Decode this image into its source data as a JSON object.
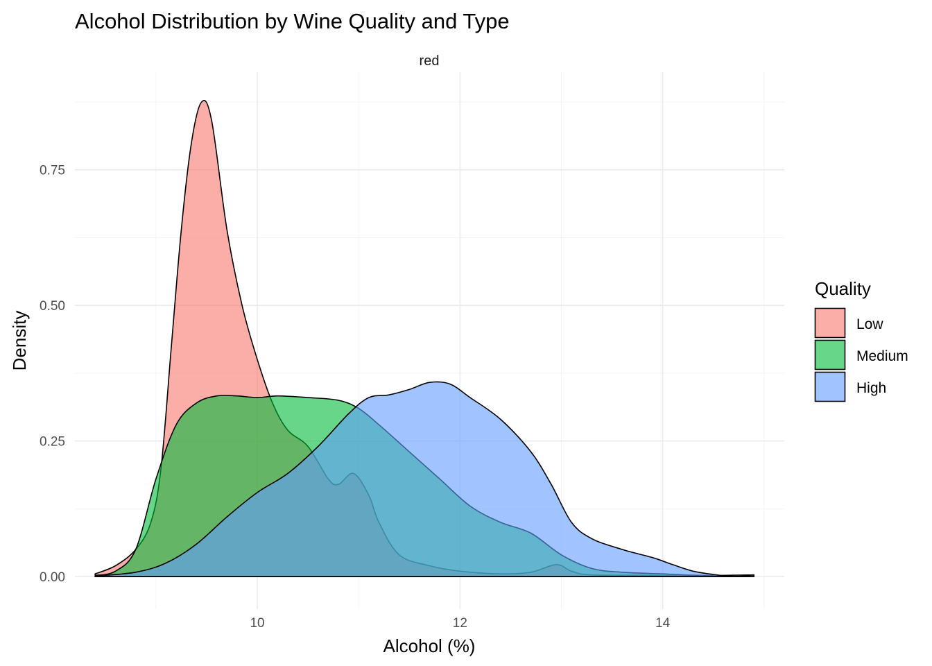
{
  "chart_data": {
    "type": "area",
    "title": "Alcohol Distribution by Wine Quality and Type",
    "facet": "red",
    "xlabel": "Alcohol (%)",
    "ylabel": "Density",
    "xlim": [
      8.2,
      15.2
    ],
    "ylim": [
      -0.06,
      0.93
    ],
    "x_ticks": [
      10,
      12,
      14
    ],
    "x_tick_labels": [
      "10",
      "12",
      "14"
    ],
    "y_ticks": [
      0,
      0.25,
      0.5,
      0.75
    ],
    "y_tick_labels": [
      "0.00",
      "0.25",
      "0.50",
      "0.75"
    ],
    "grid": true,
    "legend": {
      "title": "Quality",
      "position": "right"
    },
    "series": [
      {
        "name": "Low",
        "color": "#F8766D",
        "points": [
          [
            8.4,
            0.005
          ],
          [
            8.6,
            0.02
          ],
          [
            8.8,
            0.05
          ],
          [
            8.95,
            0.1
          ],
          [
            9.05,
            0.2
          ],
          [
            9.15,
            0.42
          ],
          [
            9.25,
            0.64
          ],
          [
            9.35,
            0.8
          ],
          [
            9.45,
            0.875
          ],
          [
            9.55,
            0.84
          ],
          [
            9.7,
            0.64
          ],
          [
            9.85,
            0.5
          ],
          [
            10.0,
            0.4
          ],
          [
            10.15,
            0.32
          ],
          [
            10.3,
            0.27
          ],
          [
            10.5,
            0.24
          ],
          [
            10.7,
            0.18
          ],
          [
            10.8,
            0.17
          ],
          [
            10.95,
            0.19
          ],
          [
            11.1,
            0.15
          ],
          [
            11.2,
            0.1
          ],
          [
            11.4,
            0.04
          ],
          [
            11.7,
            0.02
          ],
          [
            12.0,
            0.01
          ],
          [
            12.4,
            0.005
          ],
          [
            12.7,
            0.008
          ],
          [
            12.95,
            0.022
          ],
          [
            13.1,
            0.01
          ],
          [
            13.3,
            0.003
          ],
          [
            14.0,
            0.002
          ],
          [
            14.8,
            0.0
          ]
        ]
      },
      {
        "name": "Medium",
        "color": "#00BA38",
        "points": [
          [
            8.4,
            0.002
          ],
          [
            8.6,
            0.01
          ],
          [
            8.8,
            0.05
          ],
          [
            9.0,
            0.18
          ],
          [
            9.2,
            0.28
          ],
          [
            9.4,
            0.32
          ],
          [
            9.6,
            0.333
          ],
          [
            9.8,
            0.333
          ],
          [
            10.0,
            0.33
          ],
          [
            10.2,
            0.333
          ],
          [
            10.5,
            0.33
          ],
          [
            10.8,
            0.325
          ],
          [
            11.0,
            0.31
          ],
          [
            11.2,
            0.28
          ],
          [
            11.5,
            0.23
          ],
          [
            11.8,
            0.18
          ],
          [
            12.1,
            0.13
          ],
          [
            12.4,
            0.1
          ],
          [
            12.7,
            0.08
          ],
          [
            13.0,
            0.04
          ],
          [
            13.3,
            0.015
          ],
          [
            13.6,
            0.008
          ],
          [
            14.0,
            0.005
          ],
          [
            14.4,
            0.002
          ],
          [
            14.9,
            0.003
          ]
        ]
      },
      {
        "name": "High",
        "color": "#619CFF",
        "points": [
          [
            8.4,
            0.001
          ],
          [
            8.8,
            0.008
          ],
          [
            9.1,
            0.025
          ],
          [
            9.4,
            0.06
          ],
          [
            9.7,
            0.11
          ],
          [
            10.0,
            0.155
          ],
          [
            10.3,
            0.19
          ],
          [
            10.6,
            0.24
          ],
          [
            10.9,
            0.3
          ],
          [
            11.1,
            0.33
          ],
          [
            11.3,
            0.335
          ],
          [
            11.5,
            0.345
          ],
          [
            11.7,
            0.358
          ],
          [
            11.9,
            0.355
          ],
          [
            12.1,
            0.33
          ],
          [
            12.4,
            0.29
          ],
          [
            12.7,
            0.23
          ],
          [
            12.9,
            0.17
          ],
          [
            13.1,
            0.1
          ],
          [
            13.3,
            0.07
          ],
          [
            13.6,
            0.05
          ],
          [
            13.9,
            0.035
          ],
          [
            14.1,
            0.022
          ],
          [
            14.3,
            0.01
          ],
          [
            14.5,
            0.004
          ],
          [
            14.7,
            0.0
          ],
          [
            14.9,
            0.003
          ]
        ]
      }
    ]
  }
}
